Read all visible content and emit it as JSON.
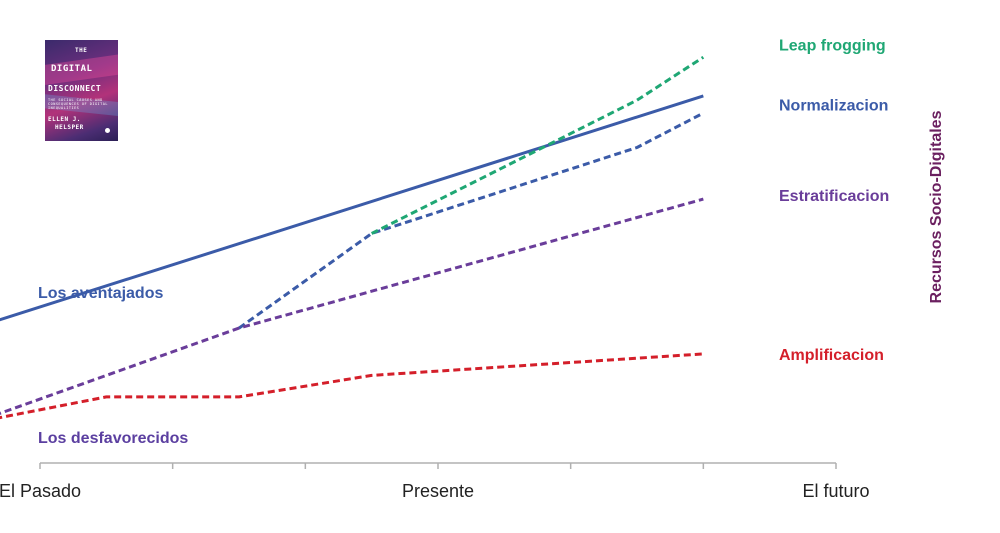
{
  "book": {
    "line1": "THE",
    "line2": "DIGITAL",
    "line3": "DISCONNECT",
    "line4": "THE SOCIAL CAUSES AND CONSEQUENCES OF DIGITAL INEQUALITIES",
    "line5": "ELLEN J.",
    "line6": "HELSPER"
  },
  "chart_data": {
    "type": "line",
    "ylabel": "Recursos Socio-Digitales",
    "x_categories": [
      "El Pasado",
      "Presente",
      "El futuro"
    ],
    "x_domain": [
      0,
      6
    ],
    "x_tick_positions": [
      0,
      1,
      2,
      3,
      4,
      5,
      6
    ],
    "x_tick_labels": [
      {
        "x": 0,
        "text": "El Pasado"
      },
      {
        "x": 3,
        "text": "Presente"
      },
      {
        "x": 6,
        "text": "El futuro"
      }
    ],
    "y_domain": [
      0,
      100
    ],
    "grid": false,
    "legend": "none",
    "start_labels": {
      "advantaged": "Los aventajados",
      "disadvantaged": "Los desfavorecidos"
    },
    "series": [
      {
        "name": "Los aventajados",
        "style": "solid",
        "color": "#3b5ba8",
        "points": [
          [
            -0.5,
            33
          ],
          [
            5.0,
            87
          ]
        ]
      },
      {
        "name": "Normalizacion",
        "style": "dashed",
        "color": "#3b5ba8",
        "points": [
          [
            1.5,
            33
          ],
          [
            2.5,
            55
          ],
          [
            4.5,
            75
          ],
          [
            5.0,
            83
          ]
        ]
      },
      {
        "name": "Leap frogging",
        "style": "dashed",
        "color": "#1fa774",
        "points": [
          [
            2.5,
            55
          ],
          [
            4.5,
            86
          ],
          [
            5.0,
            96
          ]
        ]
      },
      {
        "name": "Estratificacion",
        "style": "dashed",
        "color": "#6a3d9a",
        "points": [
          [
            -0.5,
            11
          ],
          [
            1.5,
            33
          ],
          [
            5.0,
            63
          ]
        ]
      },
      {
        "name": "Amplificacion",
        "style": "dashed",
        "color": "#d41f2a",
        "points": [
          [
            -0.5,
            11
          ],
          [
            0.5,
            17
          ],
          [
            1.5,
            17
          ],
          [
            2.5,
            22
          ],
          [
            4.0,
            25
          ],
          [
            5.0,
            27
          ]
        ]
      }
    ],
    "end_labels": [
      {
        "text": "Leap frogging",
        "color": "#1fa774",
        "y": 99
      },
      {
        "text": "Normalizacion",
        "color": "#3b5ba8",
        "y": 85
      },
      {
        "text": "Estratificacion",
        "color": "#6a3d9a",
        "y": 64
      },
      {
        "text": "Amplificacion",
        "color": "#d41f2a",
        "y": 27
      }
    ],
    "ylabel_color": "#6b2060"
  }
}
